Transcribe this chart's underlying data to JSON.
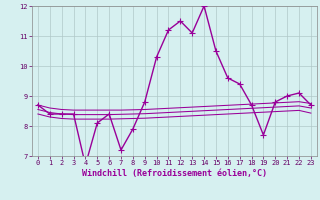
{
  "x": [
    0,
    1,
    2,
    3,
    4,
    5,
    6,
    7,
    8,
    9,
    10,
    11,
    12,
    13,
    14,
    15,
    16,
    17,
    18,
    19,
    20,
    21,
    22,
    23
  ],
  "y_main": [
    8.7,
    8.4,
    8.4,
    8.4,
    6.7,
    8.1,
    8.4,
    7.2,
    7.9,
    8.8,
    10.3,
    11.2,
    11.5,
    11.1,
    12.0,
    10.5,
    9.6,
    9.4,
    8.7,
    7.7,
    8.8,
    9.0,
    9.1,
    8.7
  ],
  "y_trend1": [
    8.7,
    8.6,
    8.55,
    8.53,
    8.53,
    8.53,
    8.53,
    8.53,
    8.54,
    8.55,
    8.57,
    8.59,
    8.61,
    8.63,
    8.65,
    8.67,
    8.69,
    8.71,
    8.73,
    8.75,
    8.77,
    8.79,
    8.81,
    8.75
  ],
  "y_trend2": [
    8.55,
    8.45,
    8.4,
    8.38,
    8.38,
    8.38,
    8.38,
    8.39,
    8.4,
    8.41,
    8.43,
    8.45,
    8.47,
    8.49,
    8.51,
    8.53,
    8.55,
    8.57,
    8.59,
    8.61,
    8.63,
    8.65,
    8.67,
    8.6
  ],
  "y_trend3": [
    8.4,
    8.3,
    8.25,
    8.23,
    8.23,
    8.23,
    8.23,
    8.24,
    8.25,
    8.26,
    8.28,
    8.3,
    8.32,
    8.34,
    8.36,
    8.38,
    8.4,
    8.42,
    8.44,
    8.46,
    8.48,
    8.5,
    8.52,
    8.43
  ],
  "line_color": "#990099",
  "bg_color": "#d6f0f0",
  "grid_color": "#b0c8c8",
  "ylim": [
    7,
    12
  ],
  "xlim": [
    -0.5,
    23.5
  ],
  "yticks": [
    7,
    8,
    9,
    10,
    11,
    12
  ],
  "xticks": [
    0,
    1,
    2,
    3,
    4,
    5,
    6,
    7,
    8,
    9,
    10,
    11,
    12,
    13,
    14,
    15,
    16,
    17,
    18,
    19,
    20,
    21,
    22,
    23
  ],
  "xlabel": "Windchill (Refroidissement éolien,°C)",
  "marker": "+",
  "markersize": 4,
  "linewidth": 1.0,
  "tick_fontsize": 5.0,
  "label_fontsize": 6.0
}
